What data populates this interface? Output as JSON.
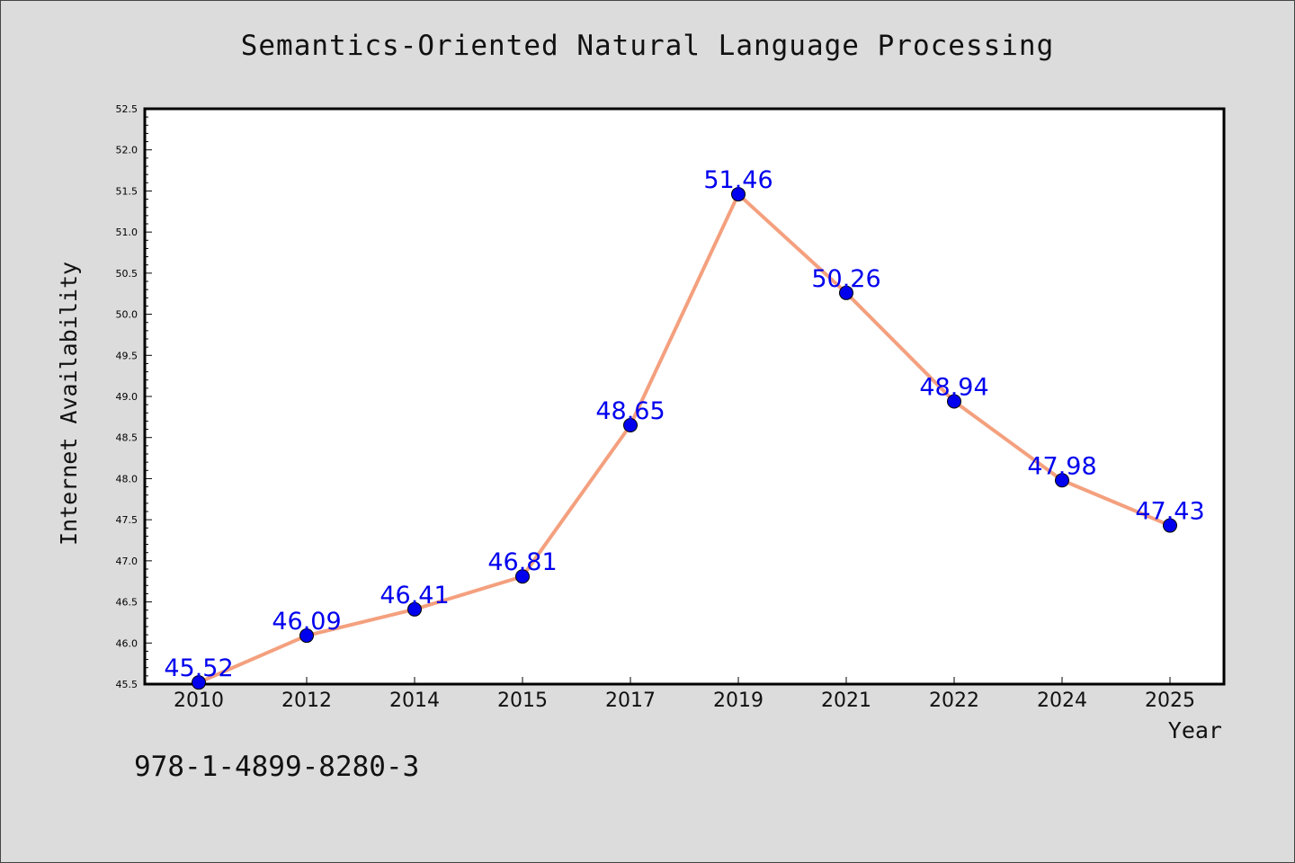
{
  "chart_data": {
    "type": "line",
    "title": "Semantics-Oriented Natural Language Processing",
    "xlabel": "Year",
    "ylabel": "Internet Availability",
    "categories": [
      "2010",
      "2012",
      "2014",
      "2015",
      "2017",
      "2019",
      "2021",
      "2022",
      "2024",
      "2025"
    ],
    "values": [
      45.52,
      46.09,
      46.41,
      46.81,
      48.65,
      51.46,
      50.26,
      48.94,
      47.98,
      47.43
    ],
    "data_labels": [
      "45.52",
      "46.09",
      "46.41",
      "46.81",
      "48.65",
      "51.46",
      "50.26",
      "48.94",
      "47.98",
      "47.43"
    ],
    "ylim": [
      45.5,
      52.5
    ],
    "y_ticks": [
      "45.5",
      "46.0",
      "46.5",
      "47.0",
      "47.5",
      "48.0",
      "48.5",
      "49.0",
      "49.5",
      "50.0",
      "50.5",
      "51.0",
      "51.5",
      "52.0",
      "52.5"
    ],
    "grid": false,
    "line_color": "#f4a07e",
    "marker_color": "#0000ee",
    "label_color": "#0000ee"
  },
  "footer": {
    "code": "978-1-4899-8280-3"
  }
}
